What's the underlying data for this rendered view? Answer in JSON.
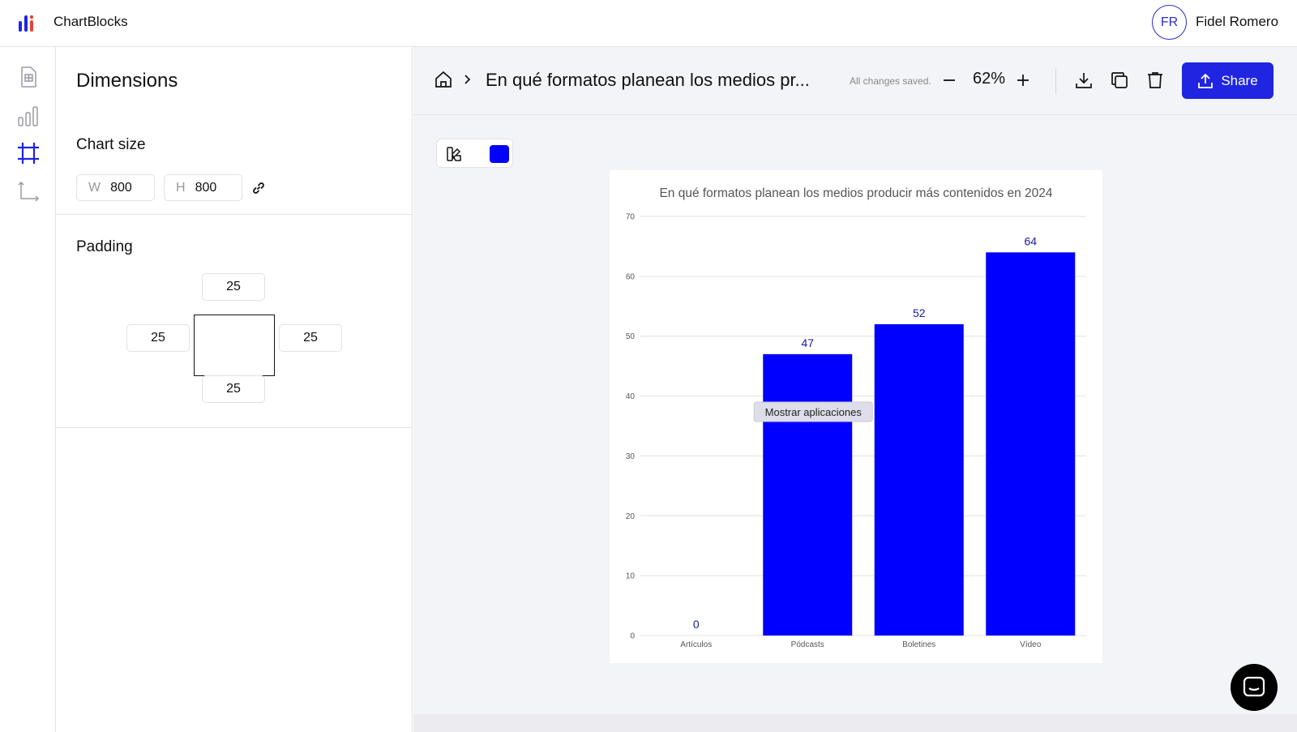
{
  "app": {
    "name": "ChartBlocks",
    "logo_icon": "chartblocks-logo-icon"
  },
  "user": {
    "initials": "FR",
    "name": "Fidel Romero"
  },
  "rail": {
    "items": [
      {
        "name": "data-grid-icon",
        "active": false
      },
      {
        "name": "bar-chart-icon",
        "active": false
      },
      {
        "name": "crop-frame-icon",
        "active": true
      },
      {
        "name": "axes-icon",
        "active": false
      }
    ]
  },
  "panel": {
    "title": "Dimensions",
    "chart_size": {
      "label": "Chart size",
      "w_prefix": "W",
      "w_value": "800",
      "h_prefix": "H",
      "h_value": "800"
    },
    "padding": {
      "label": "Padding",
      "top": "25",
      "left": "25",
      "right": "25",
      "bottom": "25"
    }
  },
  "toolbar": {
    "chart_name": "En qué formatos planean los medios pr...",
    "saved_text": "All changes saved.",
    "zoom": "62%",
    "share_label": "Share"
  },
  "colors": {
    "accent": "#1f25e0",
    "series": "#0000ff",
    "label": "#1a1aa6"
  },
  "chart_data": {
    "type": "bar",
    "title": "En qué formatos planean los medios producir más contenidos en 2024",
    "categories": [
      "Artículos",
      "Pódcasts",
      "Boletines",
      "Vídeo"
    ],
    "values": [
      0,
      47,
      52,
      64
    ],
    "ylim": [
      0,
      70
    ],
    "yticks": [
      0,
      10,
      20,
      30,
      40,
      50,
      60,
      70
    ],
    "grid": true,
    "tooltip": "Mostrar aplicaciones"
  }
}
